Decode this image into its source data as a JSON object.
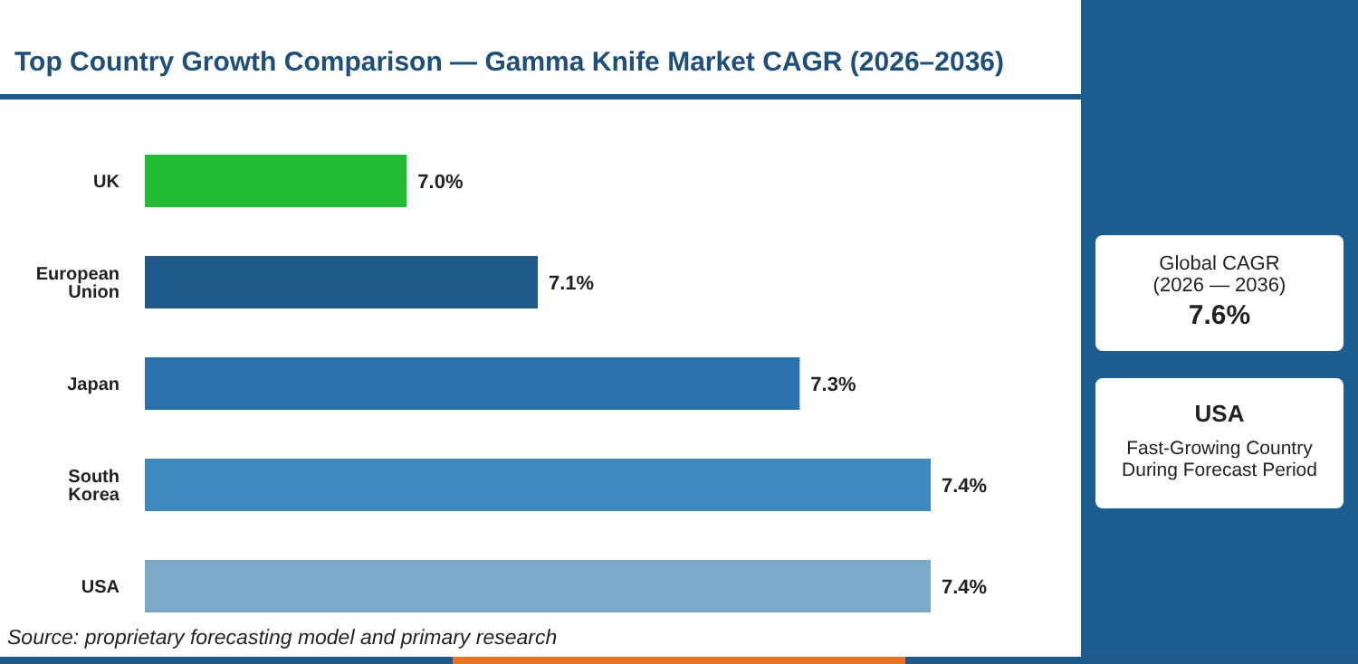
{
  "chart_data": {
    "type": "bar",
    "orientation": "horizontal",
    "title": "Top Country Growth Comparison — Gamma Knife Market CAGR (2026–2036)",
    "categories": [
      "UK",
      "European Union",
      "Japan",
      "South Korea",
      "USA"
    ],
    "values": [
      7.0,
      7.1,
      7.3,
      7.4,
      7.4
    ],
    "value_labels": [
      "7.0%",
      "7.1%",
      "7.3%",
      "7.4%",
      "7.4%"
    ],
    "colors": [
      "#22bb33",
      "#1f5a8a",
      "#2b72ad",
      "#3d88bd",
      "#7ba9c7"
    ],
    "xlim": [
      6.8,
      7.4
    ],
    "tick_labels": "y",
    "annotations": [
      "Source: proprietary forecasting model and primary research",
      "Global CAGR (2026 — 2036)",
      "7.6%",
      "USA",
      "Fast-Growing Country During Forecast Period"
    ]
  }
}
